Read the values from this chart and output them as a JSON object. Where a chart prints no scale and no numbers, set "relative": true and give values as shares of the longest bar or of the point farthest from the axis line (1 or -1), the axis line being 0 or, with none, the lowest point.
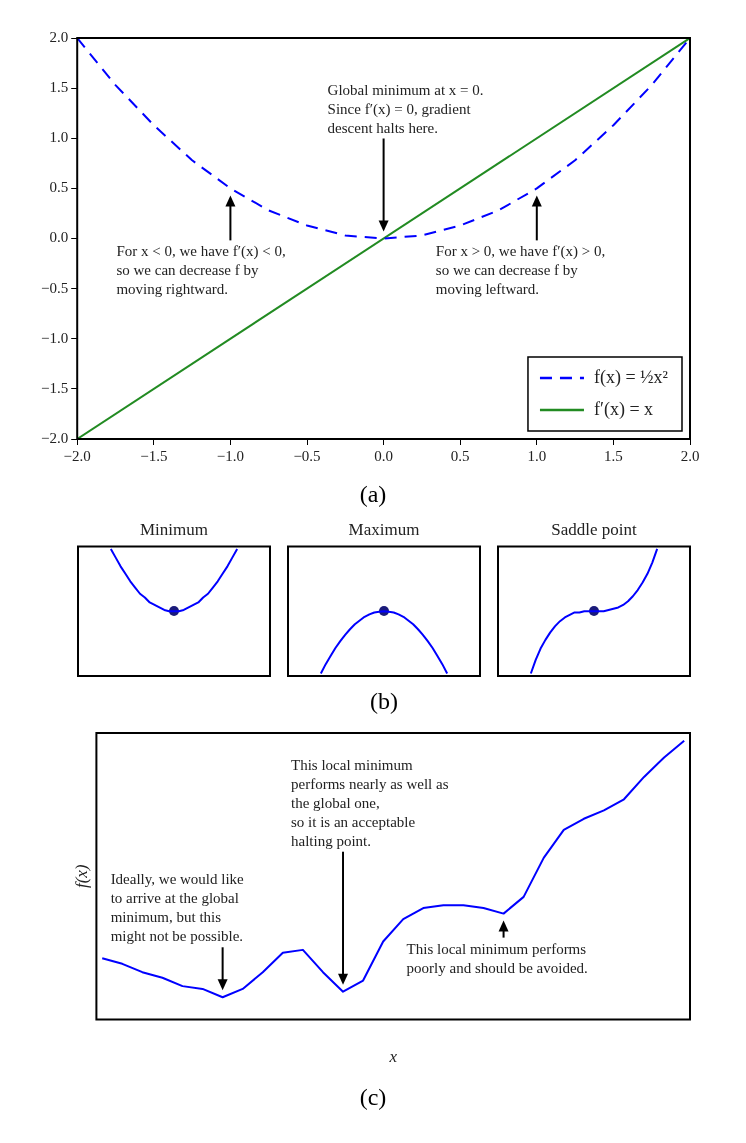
{
  "chart_data": [
    {
      "type": "line",
      "x": [
        -2,
        -1.75,
        -1.5,
        -1.25,
        -1,
        -0.75,
        -0.5,
        -0.25,
        0,
        0.25,
        0.5,
        0.75,
        1,
        1.25,
        1.5,
        1.75,
        2
      ],
      "series": [
        {
          "name": "f(x) = ½x²",
          "color": "#0000ff",
          "line_style": "dashed",
          "values": [
            2,
            1.53,
            1.13,
            0.78,
            0.5,
            0.28,
            0.13,
            0.03,
            0,
            0.03,
            0.13,
            0.28,
            0.5,
            0.78,
            1.13,
            1.53,
            2
          ]
        },
        {
          "name": "f′(x) = x",
          "color": "#228b22",
          "line_style": "solid",
          "x": [
            -2,
            2
          ],
          "values": [
            -2,
            2
          ]
        }
      ],
      "xlim": [
        -2,
        2
      ],
      "ylim": [
        -2,
        2
      ],
      "xticks": [
        {
          "value": -2,
          "label": "−2.0"
        },
        {
          "value": -1.5,
          "label": "−1.5"
        },
        {
          "value": -1,
          "label": "−1.0"
        },
        {
          "value": -0.5,
          "label": "−0.5"
        },
        {
          "value": 0,
          "label": "0.0"
        },
        0.5,
        {
          "value": 1,
          "label": "1.0"
        },
        1.5,
        {
          "value": 2,
          "label": "2.0"
        }
      ],
      "yticks": [
        {
          "value": -2,
          "label": "−2.0"
        },
        {
          "value": -1.5,
          "label": "−1.5"
        },
        {
          "value": -1,
          "label": "−1.0"
        },
        {
          "value": -0.5,
          "label": "−0.5"
        },
        {
          "value": 0,
          "label": "0.0"
        },
        0.5,
        {
          "value": 1,
          "label": "1.0"
        },
        1.5,
        {
          "value": 2,
          "label": "2.0"
        }
      ],
      "legend": "bottom right",
      "annotations": [
        "Global minimum at x = 0.\nSince f′(x) = 0, gradient\ndescent halts here.",
        "For x < 0, we have f′(x) < 0,\nso we can decrease f by\nmoving rightward.",
        "For x > 0, we have f′(x) > 0,\nso we can decrease f by\nmoving leftward.",
        "(a)"
      ]
    },
    {
      "type": "line",
      "title": "Minimum",
      "relative": true,
      "categories": [
        null,
        null,
        null,
        null,
        null,
        null,
        null,
        null,
        null,
        null,
        null,
        null,
        null,
        null,
        null,
        null,
        null,
        null,
        null,
        null,
        null,
        null,
        null,
        null,
        null,
        null,
        null
      ],
      "series": [
        {
          "color": "#0000ff",
          "values": [
            1,
            0.93,
            0.86,
            0.8,
            0.74,
            0.69,
            0.64,
            0.61,
            0.57,
            0.55,
            0.53,
            0.51,
            0.5,
            0.5,
            0.5,
            0.51,
            0.53,
            0.55,
            0.57,
            0.61,
            0.64,
            0.69,
            0.74,
            0.8,
            0.86,
            0.93,
            1
          ]
        }
      ]
    },
    {
      "type": "line",
      "title": "Maximum",
      "relative": true,
      "categories": [
        null,
        null,
        null,
        null,
        null,
        null,
        null,
        null,
        null,
        null,
        null,
        null,
        null,
        null,
        null,
        null,
        null,
        null,
        null,
        null,
        null,
        null,
        null,
        null,
        null,
        null,
        null
      ],
      "series": [
        {
          "color": "#0000ff",
          "values": [
            0,
            0.15,
            0.28,
            0.41,
            0.52,
            0.62,
            0.71,
            0.79,
            0.85,
            0.91,
            0.95,
            0.98,
            0.99,
            1,
            0.99,
            0.98,
            0.95,
            0.91,
            0.85,
            0.79,
            0.71,
            0.62,
            0.52,
            0.41,
            0.28,
            0.15,
            0
          ]
        }
      ],
      "annotations": [
        "(b)"
      ]
    },
    {
      "type": "line",
      "title": "Saddle point",
      "relative": true,
      "categories": [
        null,
        null,
        null,
        null,
        null,
        null,
        null,
        null,
        null,
        null,
        null,
        null,
        null,
        null,
        null,
        null,
        null,
        null,
        null,
        null,
        null,
        null,
        null,
        null,
        null,
        null,
        null
      ],
      "series": [
        {
          "color": "#0000ff",
          "values": [
            0,
            0.11,
            0.2,
            0.27,
            0.33,
            0.38,
            0.42,
            0.45,
            0.47,
            0.49,
            0.49,
            0.5,
            0.5,
            0.5,
            0.5,
            0.5,
            0.51,
            0.52,
            0.53,
            0.55,
            0.58,
            0.62,
            0.67,
            0.73,
            0.8,
            0.89,
            1
          ]
        }
      ]
    },
    {
      "type": "line",
      "relative": true,
      "xlabel": "x",
      "ylabel": "f(x)",
      "categories": [
        null,
        null,
        null,
        null,
        null,
        null,
        null,
        null,
        null,
        null,
        null,
        null,
        null,
        null,
        null,
        null,
        null,
        null,
        null,
        null,
        null,
        null,
        null,
        null,
        null,
        null,
        null,
        null,
        null,
        null
      ],
      "series": [
        {
          "color": "#0000ff",
          "values": [
            0.22,
            0.2,
            0.17,
            0.15,
            0.12,
            0.11,
            0.08,
            0.11,
            0.17,
            0.24,
            0.25,
            0.17,
            0.1,
            0.14,
            0.28,
            0.36,
            0.4,
            0.41,
            0.41,
            0.4,
            0.38,
            0.44,
            0.58,
            0.68,
            0.72,
            0.75,
            0.79,
            0.87,
            0.94,
            1
          ]
        }
      ],
      "annotations": [
        "Ideally, we would like\nto arrive at the global\nminimum, but this\nmight not be possible.",
        "This local minimum\nperforms nearly as well as\nthe global one,\nso it is an acceptable\nhalting point.",
        "This local minimum performs\npoorly and should be avoided.",
        "(c)"
      ]
    }
  ]
}
